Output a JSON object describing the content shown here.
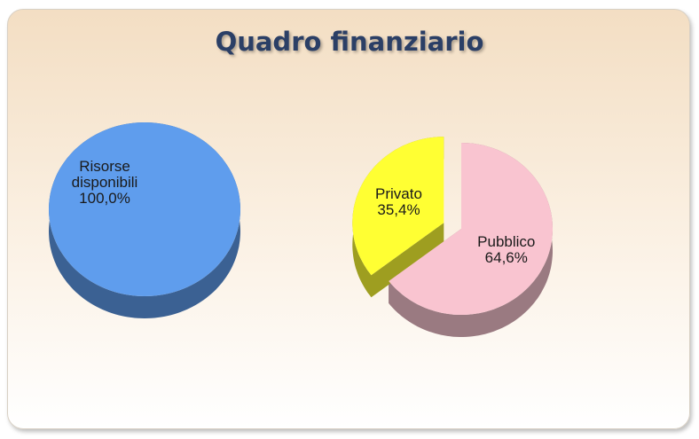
{
  "title": "Quadro finanziario",
  "chart_data": [
    {
      "type": "pie",
      "categories": [
        "Risorse disponibili"
      ],
      "values": [
        100
      ],
      "value_labels": [
        "100,0%"
      ],
      "colors": [
        "#5f9ded"
      ],
      "explode": [
        false
      ]
    },
    {
      "type": "pie",
      "categories": [
        "Pubblico",
        "Privato"
      ],
      "values": [
        64.6,
        35.4
      ],
      "value_labels": [
        "64,6%",
        "35,4%"
      ],
      "colors": [
        "#f9c4d0",
        "#ffff33"
      ],
      "explode": [
        false,
        true
      ]
    }
  ]
}
